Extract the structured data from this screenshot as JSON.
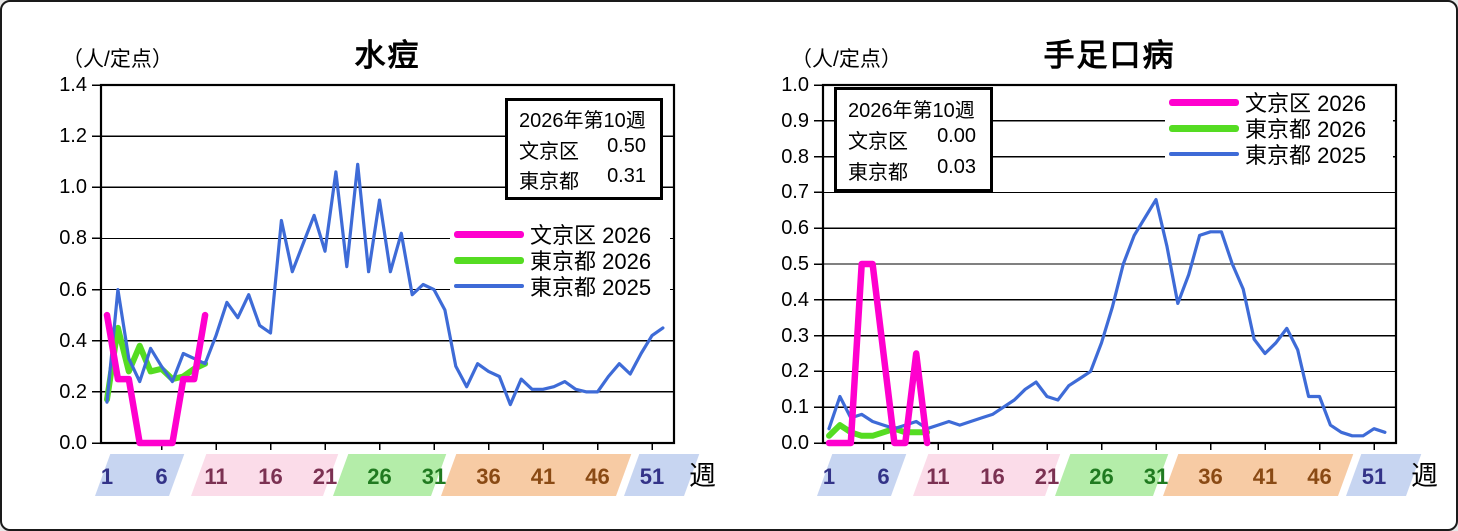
{
  "page": {
    "background": "#ffffff",
    "border_color": "#1a1a1a"
  },
  "chart_data": [
    {
      "type": "line",
      "title": "水痘",
      "unit_label": "（人/定点）",
      "week_axis_label": "週",
      "ylim": [
        0,
        1.4
      ],
      "ystep": 0.2,
      "yticks": [
        "1.4",
        "1.2",
        "1.0",
        "0.8",
        "0.6",
        "0.4",
        "0.2",
        "0.0"
      ],
      "xlim": [
        1,
        52
      ],
      "xticks": [
        "1",
        "6",
        "11",
        "16",
        "21",
        "26",
        "31",
        "36",
        "41",
        "46",
        "51"
      ],
      "grid": true,
      "legend_position": "right-middle",
      "info_box": {
        "title": "2026年第10週",
        "rows": [
          {
            "name": "文京区",
            "value": "0.50"
          },
          {
            "name": "東京都",
            "value": "0.31"
          }
        ]
      },
      "series": [
        {
          "name": "文京区 2026",
          "color": "#FF00CE",
          "width": 6.5,
          "x_start": 1,
          "values": [
            0.5,
            0.25,
            0.25,
            0.0,
            0.0,
            0.0,
            0.0,
            0.25,
            0.25,
            0.5
          ]
        },
        {
          "name": "東京都 2026",
          "color": "#55DC22",
          "width": 6,
          "x_start": 1,
          "values": [
            0.17,
            0.45,
            0.28,
            0.38,
            0.28,
            0.29,
            0.25,
            0.26,
            0.29,
            0.31
          ]
        },
        {
          "name": "東京都 2025",
          "color": "#3E6BD7",
          "width": 3.2,
          "x_start": 1,
          "values": [
            0.16,
            0.6,
            0.33,
            0.24,
            0.37,
            0.3,
            0.24,
            0.35,
            0.33,
            0.31,
            0.42,
            0.55,
            0.49,
            0.58,
            0.46,
            0.43,
            0.87,
            0.67,
            0.78,
            0.89,
            0.75,
            1.06,
            0.69,
            1.09,
            0.67,
            0.95,
            0.67,
            0.82,
            0.58,
            0.62,
            0.6,
            0.52,
            0.3,
            0.22,
            0.31,
            0.28,
            0.26,
            0.15,
            0.25,
            0.21,
            0.21,
            0.22,
            0.24,
            0.21,
            0.2,
            0.2,
            0.26,
            0.31,
            0.27,
            0.35,
            0.42,
            0.45
          ]
        }
      ]
    },
    {
      "type": "line",
      "title": "手足口病",
      "unit_label": "（人/定点）",
      "week_axis_label": "週",
      "ylim": [
        0,
        1.0
      ],
      "ystep": 0.1,
      "yticks": [
        "1.0",
        "0.9",
        "0.8",
        "0.7",
        "0.6",
        "0.5",
        "0.4",
        "0.3",
        "0.2",
        "0.1",
        "0.0"
      ],
      "xlim": [
        1,
        52
      ],
      "xticks": [
        "1",
        "6",
        "11",
        "16",
        "21",
        "26",
        "31",
        "36",
        "41",
        "46",
        "51"
      ],
      "grid": true,
      "legend_position": "top-right",
      "info_box": {
        "title": "2026年第10週",
        "rows": [
          {
            "name": "文京区",
            "value": "0.00"
          },
          {
            "name": "東京都",
            "value": "0.03"
          }
        ]
      },
      "series": [
        {
          "name": "文京区 2026",
          "color": "#FF00CE",
          "width": 6.5,
          "x_start": 1,
          "values": [
            0.0,
            0.0,
            0.0,
            0.5,
            0.5,
            0.25,
            0.0,
            0.0,
            0.25,
            0.0
          ]
        },
        {
          "name": "東京都 2026",
          "color": "#55DC22",
          "width": 6,
          "x_start": 1,
          "values": [
            0.02,
            0.05,
            0.03,
            0.02,
            0.02,
            0.03,
            0.04,
            0.03,
            0.03,
            0.03
          ]
        },
        {
          "name": "東京都 2025",
          "color": "#3E6BD7",
          "width": 3.2,
          "x_start": 1,
          "values": [
            0.04,
            0.13,
            0.07,
            0.08,
            0.06,
            0.05,
            0.04,
            0.05,
            0.06,
            0.04,
            0.05,
            0.06,
            0.05,
            0.06,
            0.07,
            0.08,
            0.1,
            0.12,
            0.15,
            0.17,
            0.13,
            0.12,
            0.16,
            0.18,
            0.2,
            0.28,
            0.38,
            0.5,
            0.58,
            0.63,
            0.68,
            0.55,
            0.39,
            0.47,
            0.58,
            0.59,
            0.59,
            0.5,
            0.43,
            0.29,
            0.25,
            0.28,
            0.32,
            0.26,
            0.13,
            0.13,
            0.05,
            0.03,
            0.02,
            0.02,
            0.04,
            0.03
          ]
        }
      ]
    }
  ],
  "season_bands": [
    {
      "weeks": [
        "1",
        "6"
      ],
      "band_color": "#C7D5F1",
      "text_color": "#333388"
    },
    {
      "weeks": [
        "11",
        "16",
        "21"
      ],
      "band_color": "#FBDCE9",
      "text_color": "#7B3152"
    },
    {
      "weeks": [
        "26",
        "31"
      ],
      "band_color": "#B4EDA9",
      "text_color": "#207A20"
    },
    {
      "weeks": [
        "36",
        "41",
        "46"
      ],
      "band_color": "#F7CBA4",
      "text_color": "#8A4A14"
    },
    {
      "weeks": [
        "51"
      ],
      "band_color": "#C7D5F1",
      "text_color": "#333388"
    }
  ]
}
